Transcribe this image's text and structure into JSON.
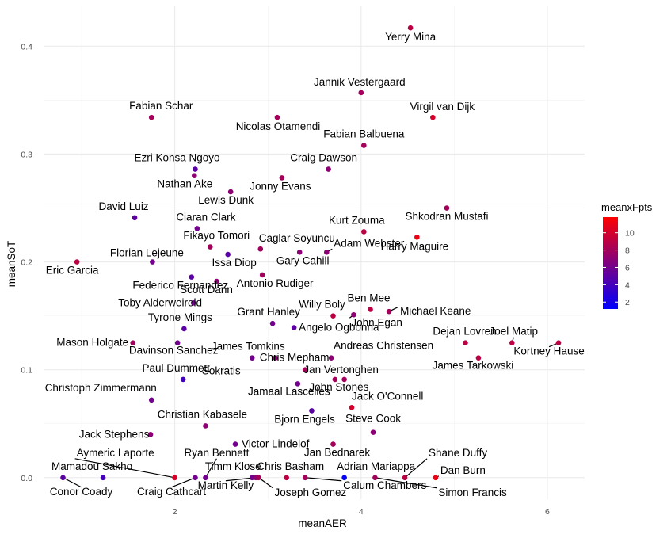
{
  "chart_data": {
    "type": "scatter",
    "xlabel": "meanAER",
    "ylabel": "meanSoT",
    "xlim": [
      0.6,
      6.4
    ],
    "ylim": [
      -0.02,
      0.437
    ],
    "xticks": [
      2,
      4,
      6
    ],
    "yticks": [
      0.0,
      0.1,
      0.2,
      0.3,
      0.4
    ],
    "ytick_labels": [
      "0.0",
      "0.1",
      "0.2",
      "0.3",
      "0.4"
    ],
    "grid": true,
    "legend": {
      "title": "meanxFpts",
      "position": "right",
      "ticks": [
        2,
        4,
        6,
        8,
        10
      ],
      "color_low": "#0000ff",
      "color_high": "#ff0000",
      "min": 1.2,
      "max": 11.8
    },
    "points": [
      {
        "name": "Yerry Mina",
        "x": 4.53,
        "y": 0.417,
        "c": 9
      },
      {
        "name": "Jannik Vestergaard",
        "x": 4.0,
        "y": 0.357,
        "c": 8
      },
      {
        "name": "Fabian Schar",
        "x": 1.75,
        "y": 0.334,
        "c": 8
      },
      {
        "name": "Nicolas Otamendi",
        "x": 3.1,
        "y": 0.334,
        "c": 8
      },
      {
        "name": "Virgil van Dijk",
        "x": 4.77,
        "y": 0.334,
        "c": 10
      },
      {
        "name": "Fabian Balbuena",
        "x": 4.03,
        "y": 0.308,
        "c": 8
      },
      {
        "name": "Ezri Konsa Ngoyo",
        "x": 2.22,
        "y": 0.286,
        "c": 5
      },
      {
        "name": "Craig Dawson",
        "x": 3.65,
        "y": 0.286,
        "c": 7
      },
      {
        "name": "Nathan Ake",
        "x": 2.21,
        "y": 0.28,
        "c": 7
      },
      {
        "name": "Jonny Evans",
        "x": 3.15,
        "y": 0.278,
        "c": 8
      },
      {
        "name": "Lewis Dunk",
        "x": 2.6,
        "y": 0.265,
        "c": 7
      },
      {
        "name": "David Luiz",
        "x": 1.57,
        "y": 0.241,
        "c": 5
      },
      {
        "name": "Shkodran Mustafi",
        "x": 4.92,
        "y": 0.25,
        "c": 8
      },
      {
        "name": "Ciaran Clark",
        "x": 2.24,
        "y": 0.231,
        "c": 6
      },
      {
        "name": "Kurt Zouma",
        "x": 4.03,
        "y": 0.228,
        "c": 9
      },
      {
        "name": "Harry Maguire",
        "x": 4.6,
        "y": 0.223,
        "c": 11
      },
      {
        "name": "Fikayo Tomori",
        "x": 2.38,
        "y": 0.214,
        "c": 8
      },
      {
        "name": "Caglar Soyuncu",
        "x": 2.92,
        "y": 0.212,
        "c": 8
      },
      {
        "name": "Issa Diop",
        "x": 2.57,
        "y": 0.207,
        "c": 5
      },
      {
        "name": "Gary Cahill",
        "x": 3.34,
        "y": 0.209,
        "c": 7
      },
      {
        "name": "Adam Webster",
        "x": 3.63,
        "y": 0.209,
        "c": 7
      },
      {
        "name": "Florian Lejeune",
        "x": 1.76,
        "y": 0.2,
        "c": 6
      },
      {
        "name": "Eric Garcia",
        "x": 0.95,
        "y": 0.2,
        "c": 9
      },
      {
        "name": "Federico Fernandez",
        "x": 2.18,
        "y": 0.186,
        "c": 5
      },
      {
        "name": "Antonio Rudiger",
        "x": 2.94,
        "y": 0.188,
        "c": 8
      },
      {
        "name": "Scott Dann",
        "x": 2.45,
        "y": 0.182,
        "c": 7
      },
      {
        "name": "Toby Alderweireld",
        "x": 2.2,
        "y": 0.162,
        "c": 6
      },
      {
        "name": "Ben Mee",
        "x": 4.1,
        "y": 0.156,
        "c": 9
      },
      {
        "name": "Willy Boly",
        "x": 3.7,
        "y": 0.15,
        "c": 9
      },
      {
        "name": "Michael Keane",
        "x": 4.3,
        "y": 0.154,
        "c": 8
      },
      {
        "name": "John Egan",
        "x": 3.92,
        "y": 0.151,
        "c": 7
      },
      {
        "name": "Grant Hanley",
        "x": 3.05,
        "y": 0.143,
        "c": 6
      },
      {
        "name": "Angelo Ogbonna",
        "x": 3.28,
        "y": 0.139,
        "c": 5
      },
      {
        "name": "Tyrone Mings",
        "x": 2.1,
        "y": 0.138,
        "c": 5
      },
      {
        "name": "Mason Holgate",
        "x": 1.55,
        "y": 0.125,
        "c": 8
      },
      {
        "name": "Davinson Sanchez",
        "x": 2.03,
        "y": 0.125,
        "c": 6
      },
      {
        "name": "Dejan Lovren",
        "x": 5.12,
        "y": 0.125,
        "c": 9
      },
      {
        "name": "Joel Matip",
        "x": 5.62,
        "y": 0.125,
        "c": 9
      },
      {
        "name": "Kortney Hause",
        "x": 6.12,
        "y": 0.125,
        "c": 9
      },
      {
        "name": "James Tomkins",
        "x": 2.83,
        "y": 0.111,
        "c": 6
      },
      {
        "name": "Andreas Christensen",
        "x": 3.68,
        "y": 0.111,
        "c": 7
      },
      {
        "name": "Chris Mepham",
        "x": 3.08,
        "y": 0.111,
        "c": 7
      },
      {
        "name": "James Tarkowski",
        "x": 5.26,
        "y": 0.111,
        "c": 9
      },
      {
        "name": "Sokratis",
        "x": 3.4,
        "y": 0.1,
        "c": 8
      },
      {
        "name": "Jan Vertonghen",
        "x": 3.82,
        "y": 0.091,
        "c": 8
      },
      {
        "name": "John Stones",
        "x": 3.72,
        "y": 0.091,
        "c": 8
      },
      {
        "name": "Paul Dummett",
        "x": 2.09,
        "y": 0.091,
        "c": 4
      },
      {
        "name": "Jamaal Lascelles",
        "x": 3.32,
        "y": 0.087,
        "c": 6
      },
      {
        "name": "Christoph Zimmermann",
        "x": 1.75,
        "y": 0.072,
        "c": 6
      },
      {
        "name": "Jack O'Connell",
        "x": 3.9,
        "y": 0.065,
        "c": 10
      },
      {
        "name": "Bjorn Engels",
        "x": 3.47,
        "y": 0.062,
        "c": 5
      },
      {
        "name": "Christian Kabasele",
        "x": 2.33,
        "y": 0.048,
        "c": 7
      },
      {
        "name": "Steve Cook",
        "x": 4.13,
        "y": 0.042,
        "c": 7
      },
      {
        "name": "Jack Stephens",
        "x": 1.74,
        "y": 0.04,
        "c": 7
      },
      {
        "name": "Victor Lindelof",
        "x": 2.65,
        "y": 0.031,
        "c": 6
      },
      {
        "name": "Jan Bednarek",
        "x": 3.7,
        "y": 0.031,
        "c": 8
      },
      {
        "name": "Conor Coady",
        "x": 0.8,
        "y": 0.0,
        "c": 5
      },
      {
        "name": "Mamadou Sakho",
        "x": 1.23,
        "y": 0.0,
        "c": 4
      },
      {
        "name": "Aymeric Laporte",
        "x": 2.0,
        "y": 0.0,
        "c": 10
      },
      {
        "name": "Craig Cathcart",
        "x": 2.22,
        "y": 0.0,
        "c": 6
      },
      {
        "name": "Ryan Bennett",
        "x": 2.33,
        "y": 0.0,
        "c": 6
      },
      {
        "name": "Timm Klose",
        "x": 2.83,
        "y": 0.0,
        "c": 6
      },
      {
        "name": "Martin Kelly",
        "x": 2.87,
        "y": 0.0,
        "c": 7
      },
      {
        "name": "Joseph Gomez",
        "x": 2.9,
        "y": 0.0,
        "c": 8
      },
      {
        "name": "Chris Basham",
        "x": 3.2,
        "y": 0.0,
        "c": 9
      },
      {
        "name": "Calum Chambers",
        "x": 3.4,
        "y": 0.0,
        "c": 8
      },
      {
        "name": "Adrian Mariappa",
        "x": 3.82,
        "y": 0.0,
        "c": 1.5
      },
      {
        "name": "Simon Francis",
        "x": 4.15,
        "y": 0.0,
        "c": 8
      },
      {
        "name": "Shane Duffy",
        "x": 4.47,
        "y": 0.0,
        "c": 9
      },
      {
        "name": "Dan Burn",
        "x": 4.8,
        "y": 0.0,
        "c": 11
      }
    ]
  }
}
